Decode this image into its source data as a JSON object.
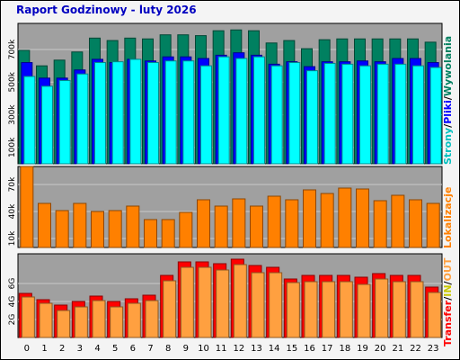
{
  "title": "Raport Godzinowy -  luty 2026",
  "legend": {
    "pages": "Strony",
    "files": "Pliki",
    "hits": "Wywolania",
    "sites": "Lokalizacje",
    "transfer": "Transfer",
    "in": "IN",
    "out": "OUT",
    "slash1": "/",
    "slash2": "/",
    "slash3": "/",
    "slash4": "/"
  },
  "colors": {
    "background": "#f4f4f4",
    "plot_bg": "#a0a0a0",
    "grid": "#c8c8c8",
    "title": "#0000c0",
    "hits": "#008060",
    "files": "#0000ff",
    "pages": "#00ffff",
    "sites": "#ff8000",
    "kbytes": "#ff0000",
    "kbytes_light": "#ffa040",
    "in_text": "#c8c800"
  },
  "chart_data": [
    {
      "type": "bar",
      "panel": "hits-files-pages",
      "categories": [
        "0",
        "1",
        "2",
        "3",
        "4",
        "5",
        "6",
        "7",
        "8",
        "9",
        "10",
        "11",
        "12",
        "13",
        "14",
        "15",
        "16",
        "17",
        "18",
        "19",
        "20",
        "21",
        "22",
        "23"
      ],
      "ylim": [
        0,
        860000
      ],
      "yticks": [
        {
          "v": 100000,
          "label": "100k"
        },
        {
          "v": 300000,
          "label": "300k"
        },
        {
          "v": 500000,
          "label": "500k"
        },
        {
          "v": 700000,
          "label": "700k"
        }
      ],
      "series": [
        {
          "name": "Wywolania",
          "color": "#008060",
          "values": [
            695000,
            600000,
            635000,
            685000,
            770000,
            755000,
            770000,
            765000,
            790000,
            790000,
            785000,
            815000,
            820000,
            815000,
            740000,
            755000,
            705000,
            760000,
            765000,
            765000,
            765000,
            765000,
            765000,
            745000
          ]
        },
        {
          "name": "Pliki",
          "color": "#0000ff",
          "values": [
            620000,
            525000,
            525000,
            575000,
            640000,
            620000,
            640000,
            630000,
            655000,
            655000,
            645000,
            665000,
            680000,
            665000,
            610000,
            625000,
            595000,
            625000,
            625000,
            630000,
            625000,
            645000,
            645000,
            620000
          ]
        },
        {
          "name": "Strony",
          "color": "#00ffff",
          "values": [
            535000,
            475000,
            510000,
            550000,
            620000,
            625000,
            640000,
            620000,
            630000,
            630000,
            600000,
            655000,
            645000,
            655000,
            600000,
            620000,
            570000,
            615000,
            610000,
            600000,
            610000,
            610000,
            600000,
            590000
          ]
        }
      ]
    },
    {
      "type": "bar",
      "panel": "sites",
      "categories": [
        "0",
        "1",
        "2",
        "3",
        "4",
        "5",
        "6",
        "7",
        "8",
        "9",
        "10",
        "11",
        "12",
        "13",
        "14",
        "15",
        "16",
        "17",
        "18",
        "19",
        "20",
        "21",
        "22",
        "23"
      ],
      "ylim": [
        0,
        90000
      ],
      "yticks": [
        {
          "v": 10000,
          "label": "10k"
        },
        {
          "v": 40000,
          "label": "40k"
        },
        {
          "v": 70000,
          "label": "70k"
        }
      ],
      "series": [
        {
          "name": "Lokalizacje",
          "color": "#ff8000",
          "values": [
            90000,
            49000,
            41000,
            49000,
            40000,
            41000,
            46000,
            31000,
            31000,
            39000,
            53000,
            46000,
            54000,
            46000,
            57000,
            53000,
            64000,
            60000,
            66000,
            65000,
            52000,
            58000,
            53000,
            49000
          ]
        }
      ]
    },
    {
      "type": "bar",
      "panel": "transfer",
      "categories": [
        "0",
        "1",
        "2",
        "3",
        "4",
        "5",
        "6",
        "7",
        "8",
        "9",
        "10",
        "11",
        "12",
        "13",
        "14",
        "15",
        "16",
        "17",
        "18",
        "19",
        "20",
        "21",
        "22",
        "23"
      ],
      "ylim": [
        0,
        9.3
      ],
      "yticks": [
        {
          "v": 2,
          "label": "2G"
        },
        {
          "v": 4,
          "label": "4G"
        },
        {
          "v": 6,
          "label": "6G"
        }
      ],
      "series": [
        {
          "name": "Transfer",
          "color": "#ff0000",
          "values": [
            4.9,
            4.2,
            3.6,
            4.0,
            4.6,
            4.0,
            4.3,
            4.7,
            6.9,
            8.4,
            8.4,
            8.2,
            8.7,
            8.0,
            7.8,
            6.5,
            6.9,
            6.9,
            6.9,
            6.7,
            7.1,
            6.9,
            6.9,
            5.6
          ]
        },
        {
          "name": "OUT",
          "color": "#ffa040",
          "values": [
            4.5,
            3.8,
            3.0,
            3.4,
            4.1,
            3.4,
            3.8,
            4.1,
            6.3,
            7.8,
            7.8,
            7.5,
            8.1,
            7.2,
            7.2,
            6.1,
            6.2,
            6.2,
            6.2,
            5.9,
            6.5,
            6.2,
            6.2,
            5.0
          ]
        }
      ]
    }
  ]
}
